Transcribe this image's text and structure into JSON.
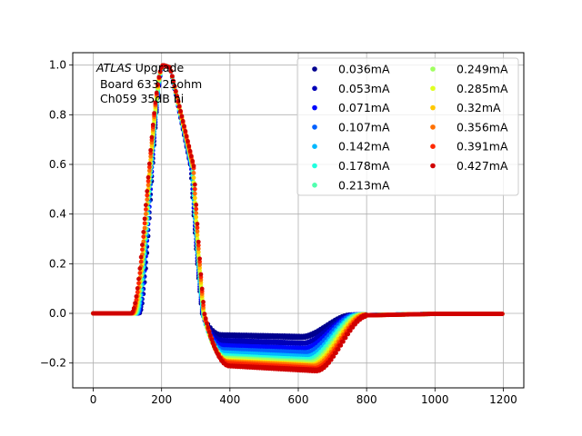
{
  "chart_data": {
    "type": "scatter",
    "title": "",
    "xlabel": "",
    "ylabel": "",
    "xlim": [
      -60,
      1260
    ],
    "ylim": [
      -0.3,
      1.05
    ],
    "x_ticks": [
      0,
      200,
      400,
      600,
      800,
      1000,
      1200
    ],
    "y_ticks": [
      -0.2,
      0.0,
      0.2,
      0.4,
      0.6,
      0.8,
      1.0
    ],
    "x_tick_labels": [
      "0",
      "200",
      "400",
      "600",
      "800",
      "1000",
      "1200"
    ],
    "y_tick_labels": [
      "−0.2",
      "0.0",
      "0.2",
      "0.4",
      "0.6",
      "0.8",
      "1.0"
    ],
    "grid": true,
    "legend_position": "top-right",
    "legend_columns": 2,
    "annotation": {
      "experiment": "ATLAS",
      "line1_rest": " Upgrade",
      "line2": " Board 633 25ohm",
      "line3": " Ch059 35dB hi"
    },
    "pulse_shape": {
      "baseline": 0.0,
      "peak_x": 210,
      "peak_y": 1.0,
      "zero_crossing_x": 310,
      "undershoot_min_range": [
        -0.1,
        -0.23
      ],
      "undershoot_end_x": [
        680,
        800
      ]
    },
    "series": [
      {
        "name": "0.036mA",
        "color": "#00008f",
        "undershoot": -0.095
      },
      {
        "name": "0.053mA",
        "color": "#0000b8",
        "undershoot": -0.12
      },
      {
        "name": "0.071mA",
        "color": "#0008ff",
        "undershoot": -0.14
      },
      {
        "name": "0.107mA",
        "color": "#0060ff",
        "undershoot": -0.16
      },
      {
        "name": "0.142mA",
        "color": "#00b8ff",
        "undershoot": -0.175
      },
      {
        "name": "0.178mA",
        "color": "#20ffdf",
        "undershoot": -0.185
      },
      {
        "name": "0.213mA",
        "color": "#50ffaf",
        "undershoot": -0.195
      },
      {
        "name": "0.249mA",
        "color": "#9fff5f",
        "undershoot": -0.2
      },
      {
        "name": "0.285mA",
        "color": "#dfff20",
        "undershoot": -0.205
      },
      {
        "name": "0.32mA",
        "color": "#ffc800",
        "undershoot": -0.21
      },
      {
        "name": "0.356mA",
        "color": "#ff7000",
        "undershoot": -0.215
      },
      {
        "name": "0.391mA",
        "color": "#ff2800",
        "undershoot": -0.22
      },
      {
        "name": "0.427mA",
        "color": "#d00000",
        "undershoot": -0.23
      }
    ]
  }
}
